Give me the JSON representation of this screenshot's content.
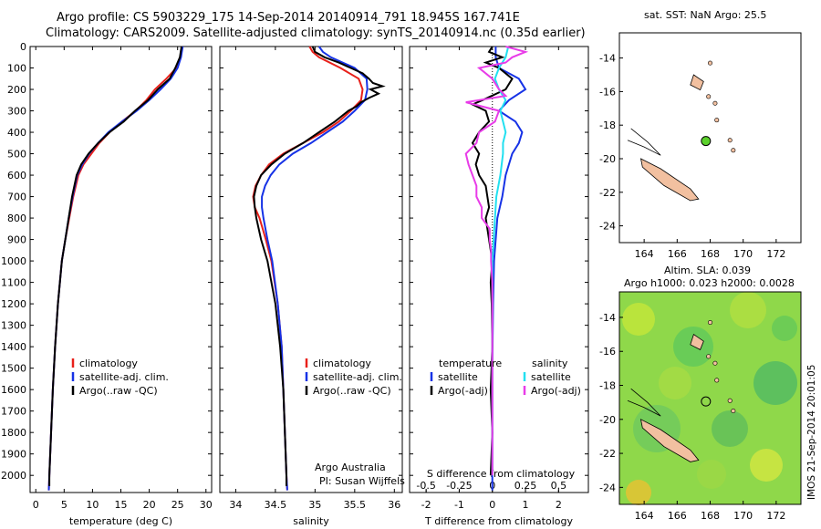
{
  "header": {
    "line1": "Argo profile: CS 5903229_175 14-Sep-2014 20140914_791 18.945S 167.741E",
    "line2": "Climatology: CARS2009. Satellite-adjusted climatology: synTS_20140914.nc (0.35d earlier)"
  },
  "colors": {
    "climatology": "#e8201a",
    "satellite": "#1632e6",
    "argo": "#000000",
    "sal_satellite": "#22e0f0",
    "sal_argo": "#e83ce8",
    "land": "#f2c0a0"
  },
  "chart_data": [
    {
      "type": "line",
      "xlabel": "temperature (deg C)",
      "ylabel": "",
      "xlim": [
        -1,
        31
      ],
      "ylim": [
        2080,
        0
      ],
      "xticks": [
        0,
        5,
        10,
        15,
        20,
        25,
        30
      ],
      "yticks": [
        0,
        100,
        200,
        300,
        400,
        500,
        600,
        700,
        800,
        900,
        1000,
        1100,
        1200,
        1300,
        1400,
        1500,
        1600,
        1700,
        1800,
        1900,
        2000
      ],
      "legend": [
        "climatology",
        "satellite-adj. clim.",
        "Argo(..raw -QC)"
      ],
      "series": [
        {
          "name": "climatology",
          "depth": [
            0,
            50,
            100,
            150,
            200,
            250,
            300,
            350,
            400,
            450,
            500,
            550,
            600,
            700,
            800,
            900,
            1000,
            1200,
            1400,
            1600,
            1800,
            2000,
            2070
          ],
          "values": [
            25.8,
            25.5,
            24.8,
            23.0,
            21.0,
            19.5,
            17.6,
            15.2,
            13.0,
            11.2,
            9.8,
            8.4,
            7.5,
            6.6,
            5.9,
            5.2,
            4.6,
            3.9,
            3.4,
            3.0,
            2.7,
            2.4,
            2.3
          ]
        },
        {
          "name": "satellite-adj. clim.",
          "depth": [
            0,
            50,
            100,
            150,
            200,
            250,
            300,
            350,
            400,
            450,
            500,
            550,
            600,
            700,
            800,
            900,
            1000,
            1200,
            1400,
            1600,
            1800,
            2000,
            2070
          ],
          "values": [
            25.9,
            25.6,
            25.0,
            23.8,
            22.0,
            20.0,
            17.8,
            15.2,
            12.8,
            11.0,
            9.4,
            8.2,
            7.3,
            6.5,
            5.8,
            5.2,
            4.6,
            3.9,
            3.4,
            3.0,
            2.7,
            2.4,
            2.3
          ]
        },
        {
          "name": "Argo(..raw -QC)",
          "depth": [
            0,
            50,
            100,
            150,
            200,
            250,
            300,
            350,
            400,
            450,
            500,
            550,
            600,
            700,
            800,
            900,
            1000,
            1200,
            1400,
            1600,
            1800,
            2000,
            2050
          ],
          "values": [
            25.7,
            25.4,
            24.6,
            23.6,
            21.5,
            19.8,
            17.5,
            15.5,
            13.0,
            11.0,
            9.3,
            8.0,
            7.2,
            6.4,
            5.8,
            5.2,
            4.6,
            3.9,
            3.4,
            3.0,
            2.7,
            2.4,
            2.4
          ]
        }
      ]
    },
    {
      "type": "line",
      "xlabel": "salinity",
      "ylabel": "",
      "xlim": [
        33.8,
        36.1
      ],
      "ylim": [
        2080,
        0
      ],
      "xticks": [
        34,
        34.5,
        35,
        35.5,
        36
      ],
      "yticks": [
        0,
        100,
        200,
        300,
        400,
        500,
        600,
        700,
        800,
        900,
        1000,
        1100,
        1200,
        1300,
        1400,
        1500,
        1600,
        1700,
        1800,
        1900,
        2000
      ],
      "legend": [
        "climatology",
        "satellite-adj. clim.",
        "Argo(..raw -QC)"
      ],
      "annotation": [
        "Argo Australia",
        "PI: Susan Wijffels"
      ],
      "series": [
        {
          "name": "climatology",
          "depth": [
            0,
            25,
            50,
            100,
            150,
            200,
            250,
            300,
            350,
            400,
            450,
            500,
            550,
            600,
            650,
            700,
            750,
            800,
            900,
            1000,
            1200,
            1400,
            1600,
            1800,
            2000,
            2070
          ],
          "values": [
            34.93,
            34.97,
            35.05,
            35.32,
            35.55,
            35.6,
            35.58,
            35.45,
            35.3,
            35.1,
            34.85,
            34.6,
            34.42,
            34.32,
            34.25,
            34.22,
            34.24,
            34.3,
            34.38,
            34.45,
            34.53,
            34.58,
            34.6,
            34.62,
            34.64,
            34.65
          ]
        },
        {
          "name": "satellite-adj. clim.",
          "depth": [
            0,
            25,
            50,
            100,
            150,
            200,
            250,
            300,
            350,
            400,
            450,
            500,
            550,
            600,
            650,
            700,
            750,
            800,
            900,
            1000,
            1200,
            1400,
            1600,
            1800,
            2000,
            2070
          ],
          "values": [
            35.05,
            35.1,
            35.2,
            35.5,
            35.65,
            35.66,
            35.63,
            35.5,
            35.35,
            35.15,
            34.95,
            34.72,
            34.55,
            34.44,
            34.37,
            34.33,
            34.33,
            34.35,
            34.4,
            34.46,
            34.53,
            34.58,
            34.6,
            34.62,
            34.64,
            34.65
          ]
        },
        {
          "name": "Argo(..raw -QC)",
          "depth": [
            0,
            25,
            50,
            75,
            100,
            125,
            150,
            170,
            185,
            200,
            220,
            240,
            260,
            280,
            300,
            350,
            400,
            450,
            500,
            550,
            600,
            650,
            700,
            750,
            800,
            900,
            1000,
            1200,
            1400,
            1600,
            1800,
            2000,
            2050
          ],
          "values": [
            34.97,
            35.0,
            35.12,
            35.3,
            35.45,
            35.6,
            35.68,
            35.73,
            35.85,
            35.7,
            35.8,
            35.68,
            35.58,
            35.52,
            35.42,
            35.25,
            35.05,
            34.85,
            34.62,
            34.45,
            34.32,
            34.26,
            34.23,
            34.24,
            34.26,
            34.32,
            34.4,
            34.5,
            34.56,
            34.6,
            34.62,
            34.64,
            34.64
          ]
        }
      ]
    },
    {
      "type": "line",
      "xlabel": "T difference from climatology",
      "ylabel": "",
      "title_bottom": "S difference from climatology",
      "xlim": [
        -2.5,
        2.9
      ],
      "ylim": [
        2080,
        0
      ],
      "xticks": [
        -2,
        -1,
        0,
        1,
        2
      ],
      "sal_xticks_labels": [
        "-0.5",
        "-0.25",
        "0",
        "0.25",
        "0.5"
      ],
      "sal_xticks": [
        -0.5,
        -0.25,
        0,
        0.25,
        0.5
      ],
      "yticks": [
        0,
        100,
        200,
        300,
        400,
        500,
        600,
        700,
        800,
        900,
        1000,
        1100,
        1200,
        1300,
        1400,
        1500,
        1600,
        1700,
        1800,
        1900,
        2000
      ],
      "legend_temperature": [
        "temperature",
        "satellite",
        "Argo(-adj)"
      ],
      "legend_salinity": [
        "salinity",
        "satellite",
        "Argo(-adj)"
      ],
      "series": [
        {
          "name": "satellite",
          "quantity": "T",
          "depth": [
            0,
            50,
            100,
            150,
            200,
            250,
            300,
            350,
            400,
            450,
            500,
            600,
            700,
            800,
            900,
            1000,
            1200,
            1500,
            1800,
            2000,
            2070
          ],
          "values": [
            0.1,
            0.1,
            0.2,
            0.8,
            1.0,
            0.5,
            0.2,
            0.7,
            0.9,
            0.8,
            0.6,
            0.4,
            0.3,
            0.15,
            0.1,
            0.05,
            0.02,
            0.0,
            0.0,
            0.0,
            0.0
          ]
        },
        {
          "name": "Argo(-adj)",
          "quantity": "T",
          "depth": [
            0,
            25,
            50,
            75,
            100,
            150,
            200,
            250,
            270,
            300,
            350,
            400,
            450,
            500,
            550,
            600,
            650,
            700,
            750,
            800,
            900,
            1000,
            1100,
            1200,
            1400,
            1600,
            1800,
            2000
          ],
          "values": [
            0.0,
            -0.1,
            0.3,
            -0.2,
            0.2,
            0.6,
            0.4,
            -0.3,
            -0.6,
            -0.2,
            -0.1,
            -0.4,
            -0.6,
            -0.4,
            -0.5,
            -0.4,
            -0.2,
            -0.15,
            -0.1,
            -0.2,
            -0.1,
            0.0,
            -0.05,
            -0.02,
            0.0,
            -0.05,
            0.0,
            -0.05
          ]
        },
        {
          "name": "satellite",
          "quantity": "S",
          "depth": [
            0,
            50,
            100,
            150,
            200,
            250,
            300,
            350,
            400,
            450,
            500,
            600,
            700,
            800,
            900,
            1000,
            1200,
            1500,
            1800,
            2000
          ],
          "values": [
            0.12,
            0.1,
            0.05,
            0.02,
            0.05,
            0.1,
            0.06,
            0.08,
            0.1,
            0.08,
            0.08,
            0.06,
            0.03,
            0.02,
            0.01,
            0.0,
            0.0,
            0.0,
            0.0,
            0.0
          ]
        },
        {
          "name": "Argo(-adj)",
          "quantity": "S",
          "depth": [
            0,
            25,
            50,
            75,
            100,
            150,
            200,
            230,
            260,
            300,
            350,
            400,
            450,
            500,
            550,
            600,
            650,
            700,
            750,
            800,
            850,
            900,
            950,
            1000,
            1100,
            1200,
            1500,
            1800,
            2000
          ],
          "values": [
            0.1,
            0.25,
            0.15,
            0.1,
            -0.1,
            0.0,
            0.05,
            0.1,
            -0.2,
            0.05,
            0.02,
            -0.1,
            -0.12,
            -0.2,
            -0.18,
            -0.15,
            -0.12,
            -0.12,
            -0.08,
            -0.08,
            -0.02,
            -0.02,
            -0.01,
            -0.01,
            0.0,
            0.0,
            0.0,
            0.0,
            0.0
          ]
        }
      ]
    }
  ],
  "maps": {
    "top": {
      "title": "sat. SST: NaN Argo: 25.5",
      "xticks": [
        "164",
        "166",
        "168",
        "170",
        "172"
      ],
      "yticks": [
        "-14",
        "-16",
        "-18",
        "-20",
        "-22",
        "-24"
      ],
      "lon": [
        162.5,
        173.5
      ],
      "lat": [
        -25,
        -12.5
      ],
      "argo_position": {
        "lon": 167.741,
        "lat": -18.945
      },
      "marker_color": "#5cd12c"
    },
    "bottom": {
      "title_line1": "Altim. SLA: 0.039",
      "title_line2": "Argo h1000: 0.023 h2000: 0.0028",
      "xticks": [
        "164",
        "166",
        "168",
        "170",
        "172"
      ],
      "yticks": [
        "-14",
        "-16",
        "-18",
        "-20",
        "-22",
        "-24"
      ],
      "lon": [
        162.5,
        173.5
      ],
      "lat": [
        -25,
        -12.5
      ],
      "argo_position": {
        "lon": 167.741,
        "lat": -18.945
      }
    }
  },
  "footer": {
    "imos_stamp": "IMOS 21-Sep-2014 20:01:05"
  }
}
